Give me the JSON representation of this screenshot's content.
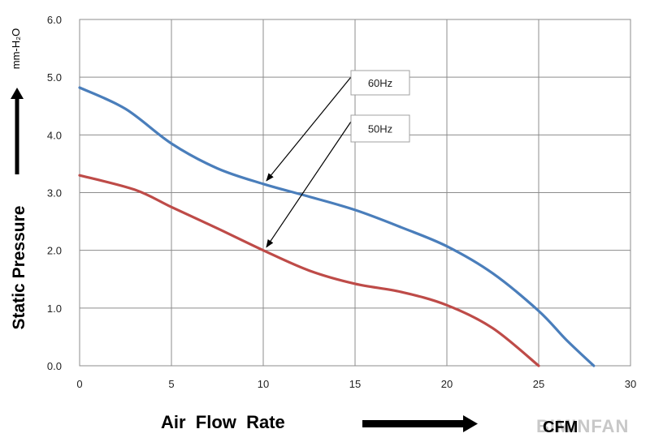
{
  "chart_data": {
    "type": "line",
    "xlabel": "Air  Flow  Rate",
    "xunit": "CFM",
    "ylabel": "Static  Pressure",
    "yunit": "mm-H₂O",
    "xlim": [
      0,
      30
    ],
    "ylim": [
      0,
      6
    ],
    "x_ticks": [
      "0",
      "5",
      "10",
      "15",
      "20",
      "25",
      "30"
    ],
    "y_ticks": [
      "0.0",
      "1.0",
      "2.0",
      "3.0",
      "4.0",
      "5.0",
      "6.0"
    ],
    "grid": true,
    "series": [
      {
        "name": "60Hz",
        "color": "#4a7ebb",
        "points": [
          [
            0,
            4.82
          ],
          [
            2.5,
            4.45
          ],
          [
            5,
            3.85
          ],
          [
            7.5,
            3.42
          ],
          [
            10,
            3.15
          ],
          [
            12.5,
            2.93
          ],
          [
            15,
            2.7
          ],
          [
            17.5,
            2.4
          ],
          [
            20,
            2.07
          ],
          [
            22.5,
            1.6
          ],
          [
            25,
            0.95
          ],
          [
            26.5,
            0.45
          ],
          [
            28,
            0.0
          ]
        ]
      },
      {
        "name": "50Hz",
        "color": "#be4b48",
        "points": [
          [
            0,
            3.3
          ],
          [
            3,
            3.05
          ],
          [
            5,
            2.75
          ],
          [
            7.5,
            2.38
          ],
          [
            10,
            2.0
          ],
          [
            12.5,
            1.65
          ],
          [
            15,
            1.42
          ],
          [
            17.5,
            1.28
          ],
          [
            20,
            1.05
          ],
          [
            22.5,
            0.65
          ],
          [
            25,
            0.0
          ]
        ]
      }
    ],
    "annotations": [
      {
        "label": "60Hz",
        "target": [
          10,
          3.15
        ]
      },
      {
        "label": "50Hz",
        "target": [
          10,
          2.0
        ]
      }
    ]
  },
  "watermark": "BIMINFAN"
}
